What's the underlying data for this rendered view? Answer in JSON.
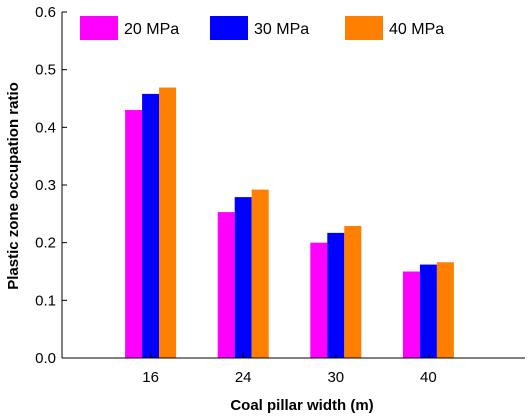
{
  "chart_data": {
    "type": "bar",
    "xlabel": "Coal pillar width (m)",
    "ylabel": "Plastic zone occupation ratio",
    "categories": [
      "16",
      "24",
      "30",
      "40"
    ],
    "series": [
      {
        "name": "20 MPa",
        "color": "#ff00ff",
        "values": [
          0.43,
          0.253,
          0.2,
          0.15
        ]
      },
      {
        "name": "30 MPa",
        "color": "#0000ff",
        "values": [
          0.458,
          0.279,
          0.217,
          0.162
        ]
      },
      {
        "name": "40 MPa",
        "color": "#ff8000",
        "values": [
          0.469,
          0.292,
          0.229,
          0.166
        ]
      }
    ],
    "ylim": [
      0,
      0.6
    ],
    "yticks": [
      "0.0",
      "0.1",
      "0.2",
      "0.3",
      "0.4",
      "0.5",
      "0.6"
    ],
    "legend_position": "top-left",
    "grid": false
  }
}
